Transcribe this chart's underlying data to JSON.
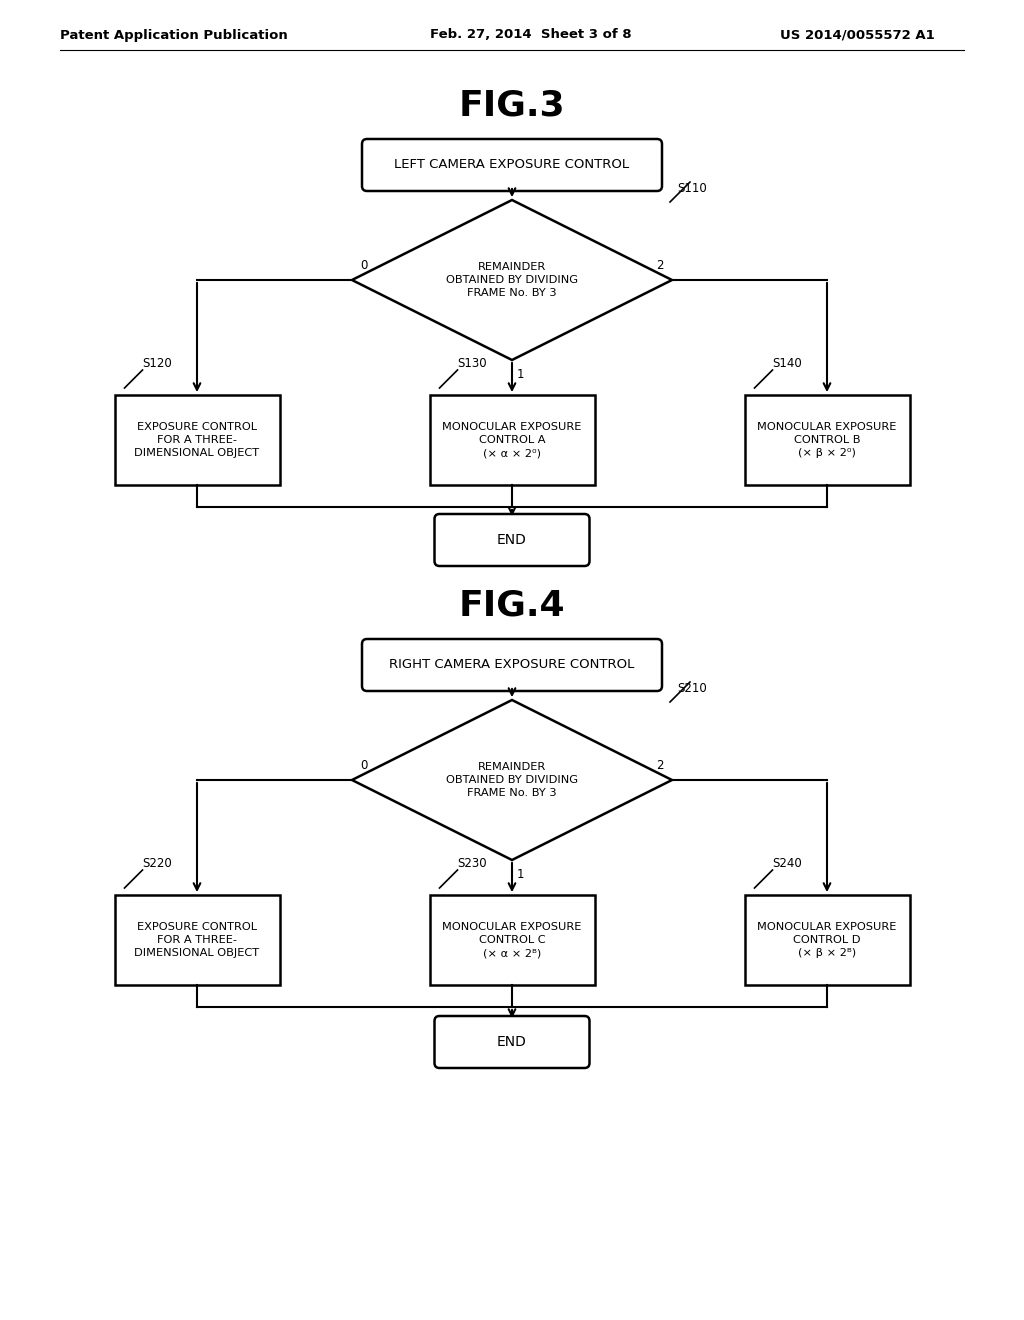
{
  "bg_color": "#ffffff",
  "header_left": "Patent Application Publication",
  "header_mid": "Feb. 27, 2014  Sheet 3 of 8",
  "header_right": "US 2014/0055572 A1",
  "fig3_title": "FIG.3",
  "fig4_title": "FIG.4",
  "fig3_start_label": "LEFT CAMERA EXPOSURE CONTROL",
  "fig3_diamond_label": "REMAINDER\nOBTAINED BY DIVIDING\nFRAME No. BY 3",
  "fig3_diamond_step": "S110",
  "fig3_box0_label": "EXPOSURE CONTROL\nFOR A THREE-\nDIMENSIONAL OBJECT",
  "fig3_box0_step": "S120",
  "fig3_box1_label": "MONOCULAR EXPOSURE\nCONTROL A\n(× α × 2⁰)",
  "fig3_box1_step": "S130",
  "fig3_box2_label": "MONOCULAR EXPOSURE\nCONTROL B\n(× β × 2⁰)",
  "fig3_box2_step": "S140",
  "fig3_end_label": "END",
  "fig4_start_label": "RIGHT CAMERA EXPOSURE CONTROL",
  "fig4_diamond_label": "REMAINDER\nOBTAINED BY DIVIDING\nFRAME No. BY 3",
  "fig4_diamond_step": "S210",
  "fig4_box0_label": "EXPOSURE CONTROL\nFOR A THREE-\nDIMENSIONAL OBJECT",
  "fig4_box0_step": "S220",
  "fig4_box1_label": "MONOCULAR EXPOSURE\nCONTROL C\n(× α × 2ᴮ)",
  "fig4_box1_step": "S230",
  "fig4_box2_label": "MONOCULAR EXPOSURE\nCONTROL D\n(× β × 2ᴮ)",
  "fig4_box2_step": "S240",
  "fig4_end_label": "END",
  "text_color": "#000000",
  "box_edge_color": "#000000",
  "line_color": "#000000"
}
